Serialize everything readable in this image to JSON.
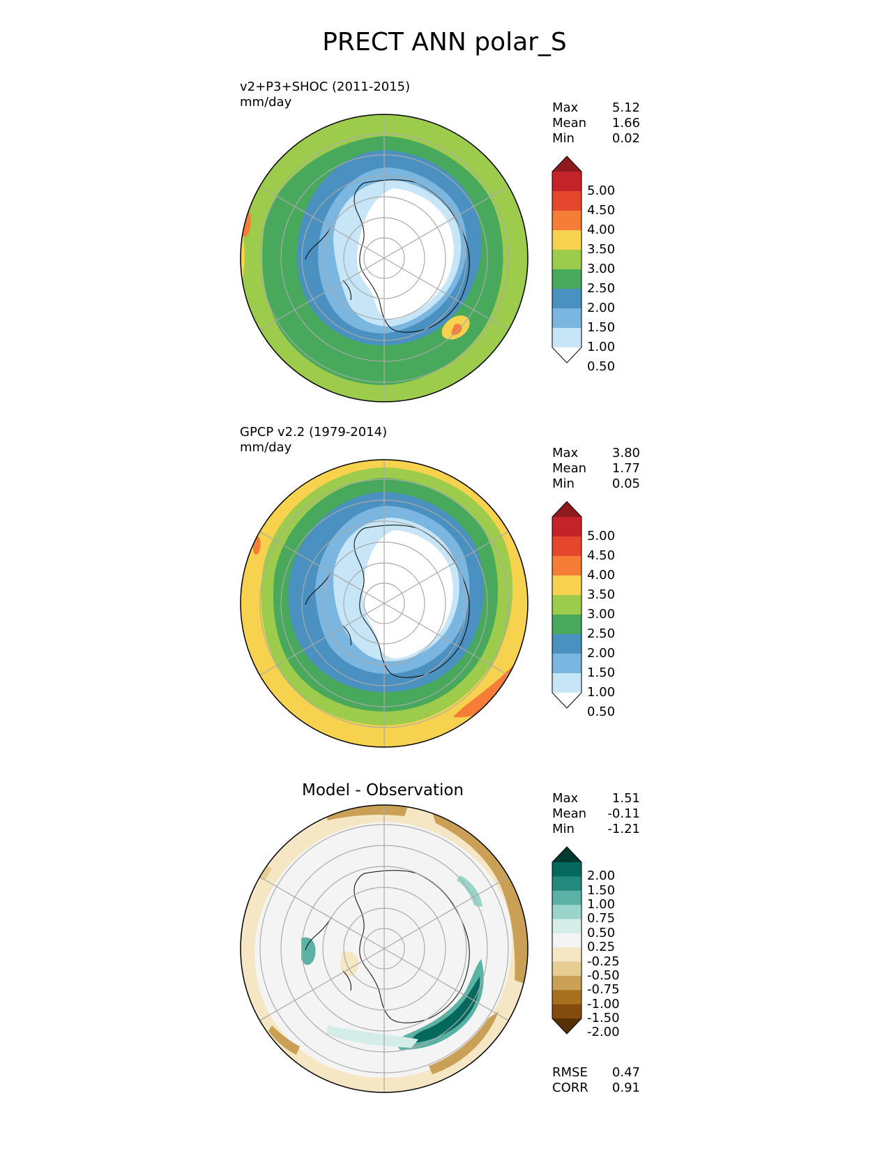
{
  "title": "PRECT ANN polar_S",
  "panels": [
    {
      "name": "model",
      "title_line1": "v2+P3+SHOC (2011-2015)",
      "title_line2": "mm/day",
      "stats": [
        {
          "label": "Max",
          "value": "5.12"
        },
        {
          "label": "Mean",
          "value": "1.66"
        },
        {
          "label": "Min",
          "value": "0.02"
        }
      ]
    },
    {
      "name": "observation",
      "title_line1": "GPCP v2.2 (1979-2014)",
      "title_line2": "mm/day",
      "stats": [
        {
          "label": "Max",
          "value": "3.80"
        },
        {
          "label": "Mean",
          "value": "1.77"
        },
        {
          "label": "Min",
          "value": "0.05"
        }
      ]
    },
    {
      "name": "difference",
      "title_center": "Model - Observation",
      "stats": [
        {
          "label": "Max",
          "value": "1.51"
        },
        {
          "label": "Mean",
          "value": "-0.11"
        },
        {
          "label": "Min",
          "value": "-1.21"
        }
      ],
      "metrics": [
        {
          "label": "RMSE",
          "value": "0.47"
        },
        {
          "label": "CORR",
          "value": "0.91"
        }
      ]
    }
  ],
  "colorbar_precip": {
    "labels": [
      "5.00",
      "4.50",
      "4.00",
      "3.50",
      "3.00",
      "2.50",
      "2.00",
      "1.50",
      "1.00",
      "0.50"
    ],
    "colors": [
      "#8e1a1f",
      "#c5232a",
      "#e5462e",
      "#f57d37",
      "#f6d24e",
      "#9dcb4c",
      "#48a85c",
      "#4a90c0",
      "#7ab6e0",
      "#c6e5f7",
      "#ffffff"
    ]
  },
  "colorbar_diff": {
    "labels": [
      "2.00",
      "1.50",
      "1.00",
      "0.75",
      "0.50",
      "0.25",
      "-0.25",
      "-0.50",
      "-0.75",
      "-1.00",
      "-1.50",
      "-2.00"
    ],
    "colors": [
      "#023a30",
      "#04685c",
      "#23897c",
      "#5cb1a5",
      "#9ad5cb",
      "#d4ede9",
      "#f4f4f4",
      "#f5e6c4",
      "#e6cd94",
      "#c9a055",
      "#a6711f",
      "#834b0d",
      "#563006"
    ]
  }
}
